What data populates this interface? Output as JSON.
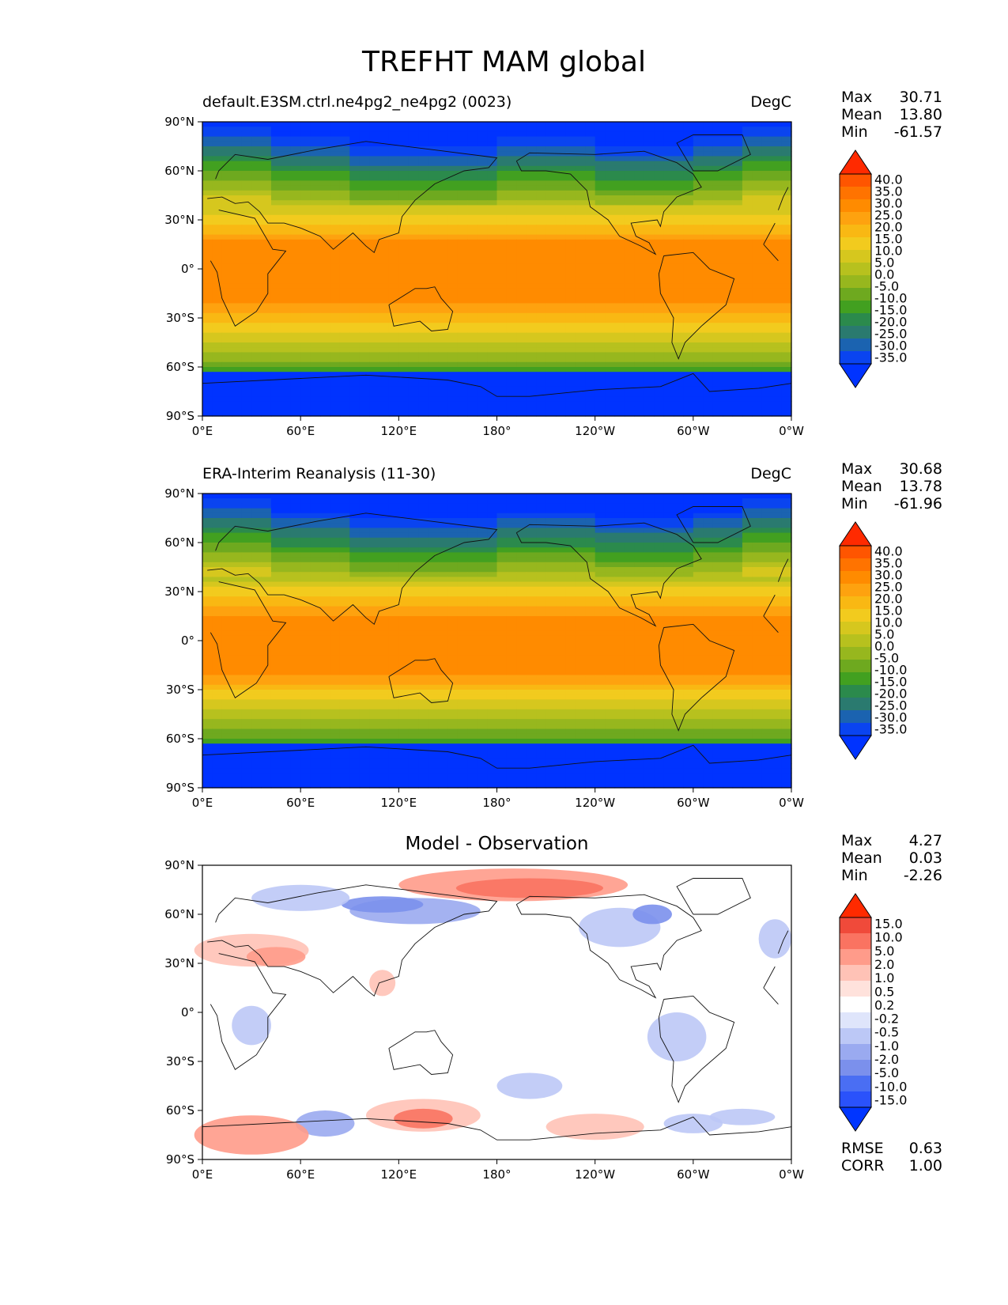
{
  "figure_title": "TREFHT MAM global",
  "axis": {
    "lat_labels": [
      "90°N",
      "60°N",
      "30°N",
      "0°",
      "30°S",
      "60°S",
      "90°S"
    ],
    "lon_labels": [
      "0°E",
      "60°E",
      "120°E",
      "180°",
      "120°W",
      "60°W",
      "0°W"
    ]
  },
  "panels": [
    {
      "title_left": "default.E3SM.ctrl.ne4pg2_ne4pg2 (0023)",
      "title_right": "DegC",
      "stats": [
        {
          "label": "Max",
          "value": "30.71"
        },
        {
          "label": "Mean",
          "value": "13.80"
        },
        {
          "label": "Min",
          "value": "-61.57"
        }
      ],
      "colorbar_labels": [
        "40.0",
        "35.0",
        "30.0",
        "25.0",
        "20.0",
        "15.0",
        "10.0",
        "5.0",
        "0.0",
        "-5.0",
        "-10.0",
        "-15.0",
        "-20.0",
        "-25.0",
        "-30.0",
        "-35.0"
      ]
    },
    {
      "title_left": "ERA-Interim Reanalysis (11-30)",
      "title_right": "DegC",
      "stats": [
        {
          "label": "Max",
          "value": "30.68"
        },
        {
          "label": "Mean",
          "value": "13.78"
        },
        {
          "label": "Min",
          "value": "-61.96"
        }
      ],
      "colorbar_labels": [
        "40.0",
        "35.0",
        "30.0",
        "25.0",
        "20.0",
        "15.0",
        "10.0",
        "5.0",
        "0.0",
        "-5.0",
        "-10.0",
        "-15.0",
        "-20.0",
        "-25.0",
        "-30.0",
        "-35.0"
      ]
    },
    {
      "title_center": "Model - Observation",
      "stats": [
        {
          "label": "Max",
          "value": "4.27"
        },
        {
          "label": "Mean",
          "value": "0.03"
        },
        {
          "label": "Min",
          "value": "-2.26"
        }
      ],
      "colorbar_labels": [
        "15.0",
        "10.0",
        "5.0",
        "2.0",
        "1.0",
        "0.5",
        "0.2",
        "-0.2",
        "-0.5",
        "-1.0",
        "-2.0",
        "-5.0",
        "-10.0",
        "-15.0"
      ],
      "extra_stats": [
        {
          "label": "RMSE",
          "value": "0.63"
        },
        {
          "label": "CORR",
          "value": "1.00"
        }
      ]
    }
  ],
  "colors": {
    "temp_scale": [
      "#ff2a00",
      "#ff5500",
      "#ff7300",
      "#ff8b00",
      "#fea20f",
      "#f9b813",
      "#f2cb1e",
      "#d6c71e",
      "#b7c11e",
      "#97b71e",
      "#6ea91f",
      "#42a020",
      "#2b8a4c",
      "#2a7a6f",
      "#1b63b0",
      "#0a44f0",
      "#0033ff"
    ],
    "diff_scale": [
      "#ff2a00",
      "#f04a3a",
      "#fa7361",
      "#ff9b8a",
      "#ffc2b6",
      "#ffe2dc",
      "#ffffff",
      "#dfe5fb",
      "#bcc8f6",
      "#9aaaf0",
      "#7b90ec",
      "#4a6ef3",
      "#2a52fb",
      "#0035ff"
    ]
  }
}
